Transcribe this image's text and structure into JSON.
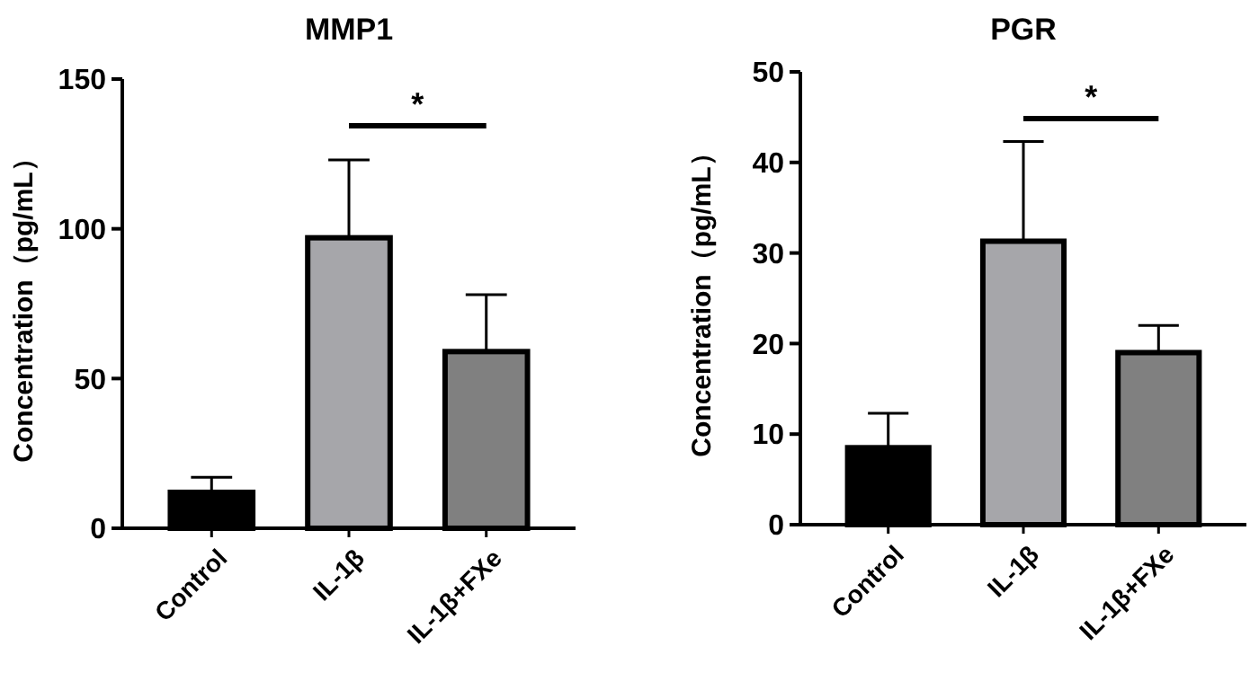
{
  "chart_data": [
    {
      "type": "bar",
      "title": "MMP1",
      "ylabel": "Concentration（pg/mL）",
      "categories": [
        "Control",
        "IL-1β",
        "IL-1β+FXe"
      ],
      "values": [
        12,
        97,
        59
      ],
      "colors": [
        "#000000",
        "#a6a6aa",
        "#808080"
      ],
      "errors": [
        [
          12,
          17
        ],
        [
          97,
          123
        ],
        [
          59,
          78
        ]
      ],
      "ylim": [
        0,
        150
      ],
      "yticks": [
        0,
        50,
        100,
        150
      ],
      "grid": false,
      "annotations": [
        "*"
      ]
    },
    {
      "type": "bar",
      "title": "PGR",
      "ylabel": "Concentration（pg/mL）",
      "categories": [
        "Control",
        "IL-1β",
        "IL-1β+FXe"
      ],
      "values": [
        8.5,
        31.3,
        19
      ],
      "colors": [
        "#000000",
        "#a6a6aa",
        "#808080"
      ],
      "errors": [
        [
          8.5,
          12.3
        ],
        [
          31.3,
          42.3
        ],
        [
          19,
          22
        ]
      ],
      "ylim": [
        0,
        50
      ],
      "yticks": [
        0,
        10,
        20,
        30,
        40,
        50
      ],
      "grid": false,
      "annotations": [
        "*"
      ]
    }
  ]
}
